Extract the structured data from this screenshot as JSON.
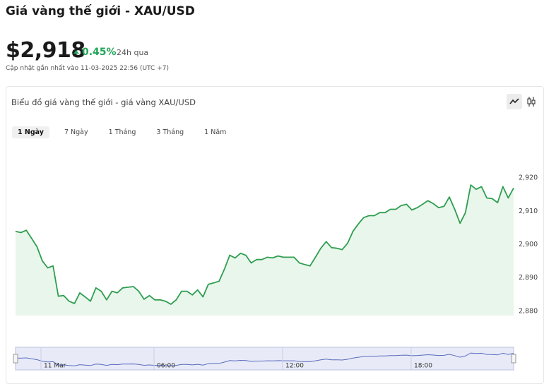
{
  "header": {
    "title": "Giá vàng thế giới - XAU/USD",
    "price": "$2,918",
    "change": "0.45%",
    "period": "24h qua",
    "updated": "Cập nhật gần nhất vào 11-03-2025 22:56 (UTC +7)"
  },
  "card": {
    "title": "Biểu đồ giá vàng thế giới - giá vàng XAU/USD",
    "tabs": [
      "1 Ngày",
      "7 Ngày",
      "1 Tháng",
      "3 Tháng",
      "1 Năm"
    ]
  },
  "chart_data": {
    "type": "area",
    "color": "#2e9e4f",
    "fill": "#e9f6ec",
    "values": [
      2904.0,
      2903.6,
      2904.3,
      2901.9,
      2899.4,
      2895.1,
      2893.0,
      2893.6,
      2884.5,
      2884.7,
      2883.0,
      2882.3,
      2885.5,
      2884.3,
      2883.0,
      2887.0,
      2886.0,
      2883.4,
      2886.0,
      2885.5,
      2887.0,
      2887.2,
      2887.4,
      2886.0,
      2883.6,
      2884.7,
      2883.4,
      2883.4,
      2883.0,
      2882.1,
      2883.4,
      2886.0,
      2886.0,
      2884.9,
      2886.4,
      2884.3,
      2888.1,
      2888.5,
      2889.0,
      2892.6,
      2896.8,
      2896.0,
      2897.4,
      2896.8,
      2894.5,
      2895.5,
      2895.5,
      2896.2,
      2896.0,
      2896.6,
      2896.2,
      2896.2,
      2896.2,
      2894.5,
      2894.0,
      2893.6,
      2896.2,
      2898.9,
      2900.9,
      2899.1,
      2898.9,
      2898.5,
      2900.4,
      2904.0,
      2906.2,
      2908.1,
      2908.7,
      2908.7,
      2909.6,
      2909.6,
      2910.6,
      2910.6,
      2911.7,
      2912.1,
      2910.4,
      2911.1,
      2912.1,
      2913.2,
      2912.3,
      2911.1,
      2911.5,
      2914.3,
      2910.6,
      2906.4,
      2909.6,
      2917.9,
      2916.6,
      2917.4,
      2914.0,
      2913.8,
      2912.6,
      2917.4,
      2914.0,
      2917.0
    ],
    "ylim": [
      2878.7,
      2930
    ],
    "yticks": [
      {
        "value": 2880,
        "label": "2,880"
      },
      {
        "value": 2890,
        "label": "2,890"
      },
      {
        "value": 2900,
        "label": "2,900"
      },
      {
        "value": 2910,
        "label": "2,910"
      },
      {
        "value": 2920,
        "label": "2,920"
      }
    ],
    "navigator_labels": [
      "11 Mar",
      "06:00",
      "12:00",
      "18:00"
    ]
  }
}
